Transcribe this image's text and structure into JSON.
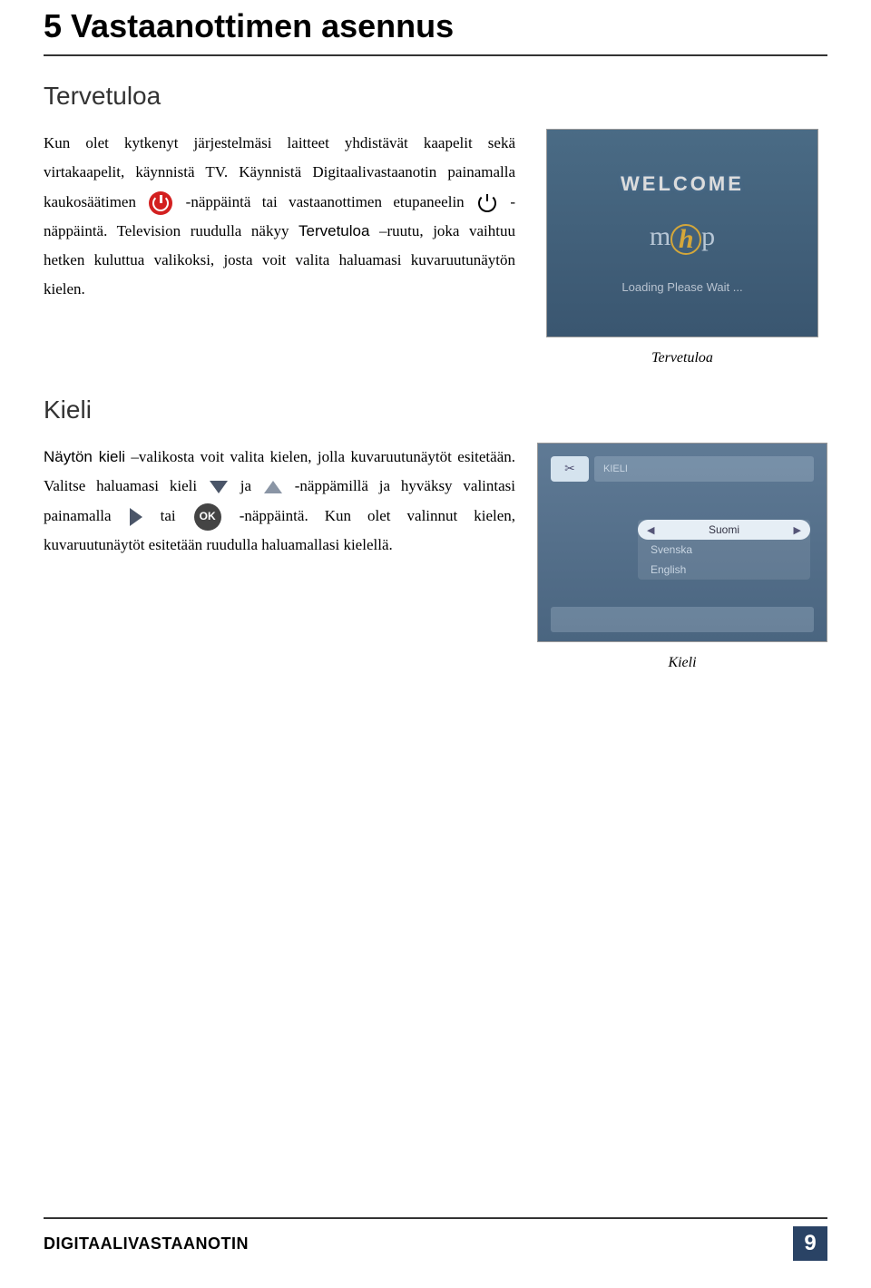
{
  "chapter": {
    "title": "5 Vastaanottimen asennus"
  },
  "section1": {
    "title": "Tervetuloa",
    "para_intro": "Kun olet kytkenyt järjestelmäsi laitteet yhdistävät kaapelit sekä virtakaapelit, käynnistä TV. Käynnistä Digitaalivastaanotin painamalla kaukosäätimen",
    "para_mid1": "-näppäintä tai vastaanottimen etupaneelin",
    "para_mid2": "-näppäintä. Television ruudulla näkyy",
    "term_tervetuloa": "Tervetuloa",
    "para_end": " –ruutu, joka vaihtuu hetken kuluttua valikoksi, josta voit valita haluamasi kuvaruutunäytön kielen.",
    "caption": "Tervetuloa",
    "screenshot": {
      "welcome": "WELCOME",
      "loading": "Loading Please Wait ...",
      "bg_gradient_top": "#4a6b85",
      "bg_gradient_bottom": "#3a5670",
      "logo_border": "#d4a73a"
    }
  },
  "section2": {
    "title": "Kieli",
    "term_naytonkieli": "Näytön kieli",
    "para1": " –valikosta voit valita kielen, jolla kuvaruutunäytöt esitetään. Valitse haluamasi kieli",
    "ja": "ja",
    "para2": "-näppämillä ja hyväksy valintasi painamalla",
    "tai": "tai",
    "para3": "-näppäintä. Kun olet valinnut kielen, kuvaruutunäytöt esitetään ruudulla haluamallasi kielellä.",
    "caption": "Kieli",
    "screenshot": {
      "header": "KIELI",
      "selected": "Suomi",
      "options": [
        "Svenska",
        "English"
      ],
      "bg_gradient_top": "#5f7a95",
      "bg_gradient_bottom": "#4a6580"
    }
  },
  "footer": {
    "label": "DIGITAALIVASTAANOTIN",
    "page": "9",
    "page_bg": "#2a4365"
  },
  "icons": {
    "power_red": "power-icon",
    "power_outline": "power-outline-icon",
    "ok_label": "OK"
  }
}
